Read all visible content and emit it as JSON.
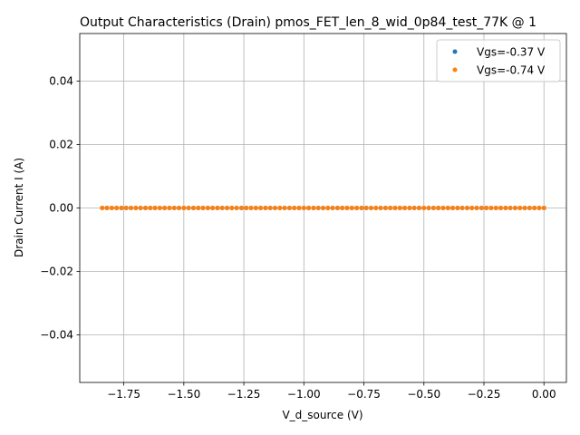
{
  "chart_data": {
    "type": "scatter",
    "title": "Output Characteristics (Drain) pmos_FET_len_8_wid_0p84_test_77K @ 1",
    "xlabel": "V_d_source (V)",
    "ylabel": "Drain Current I (A)",
    "xlim": [
      -1.9335,
      0.0935
    ],
    "ylim": [
      -0.055,
      0.055
    ],
    "xticks": [
      -1.75,
      -1.5,
      -1.25,
      -1.0,
      -0.75,
      -0.5,
      -0.25,
      0.0
    ],
    "xtick_labels": [
      "−1.75",
      "−1.50",
      "−1.25",
      "−1.00",
      "−0.75",
      "−0.50",
      "−0.25",
      "0.00"
    ],
    "yticks": [
      -0.04,
      -0.02,
      0.0,
      0.02,
      0.04
    ],
    "ytick_labels": [
      "−0.04",
      "−0.02",
      "0.00",
      "0.02",
      "0.04"
    ],
    "grid": true,
    "legend_position": "top-right",
    "series": [
      {
        "name": "Vgs=-0.37 V",
        "color": "#1f77b4",
        "x_start": -1.84,
        "x_end": 0.0,
        "points": 93,
        "y": 0.0
      },
      {
        "name": "Vgs=-0.74 V",
        "color": "#ff7f0e",
        "x_start": -1.84,
        "x_end": 0.0,
        "points": 93,
        "y": 0.0
      }
    ]
  }
}
